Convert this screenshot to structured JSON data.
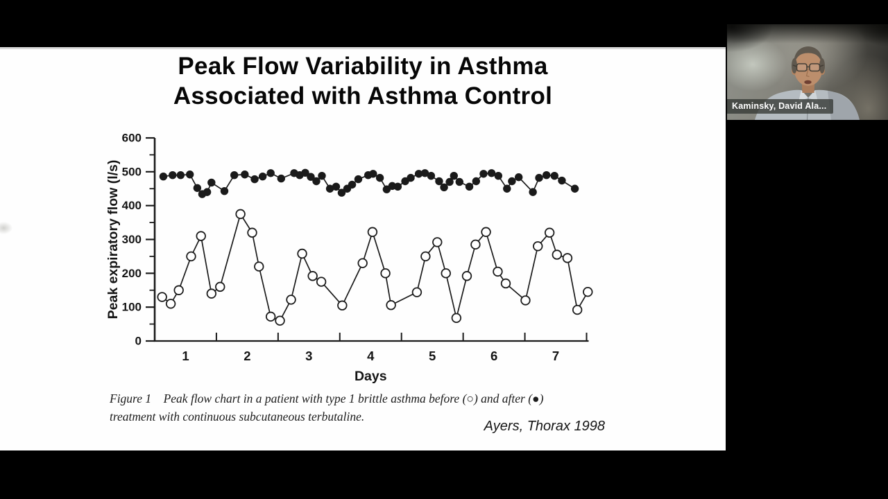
{
  "screen": {
    "background": "#000000"
  },
  "slide": {
    "background": "#fefefe",
    "title_lines": [
      "Peak Flow Variability in Asthma",
      "Associated with Asthma Control"
    ],
    "caption_lines": [
      "Figure 1    Peak flow chart in a patient with type 1 brittle asthma before (○) and after (●)",
      "treatment with continuous subcutaneous terbutaline."
    ],
    "citation": "Ayers, Thorax 1998"
  },
  "chart_data": {
    "type": "line",
    "title": "",
    "xlabel": "Days",
    "ylabel": "Peak expiratory flow (l/s)",
    "xlim": [
      0.5,
      7.5
    ],
    "ylim": [
      0,
      600
    ],
    "x_tick_labels": [
      1,
      2,
      3,
      4,
      5,
      6,
      7
    ],
    "x_tick_marks": [
      1.5,
      2.5,
      3.5,
      4.5,
      5.5,
      6.5,
      7.5
    ],
    "y_tick_labels": [
      0,
      100,
      200,
      300,
      400,
      500,
      600
    ],
    "y_minor_tick_step": 50,
    "grid": false,
    "legend_position": "none (markers explained in figure caption)",
    "line_color": "#1a1a1a",
    "series": [
      {
        "name": "before treatment",
        "marker": "open-circle",
        "x": [
          0.62,
          0.76,
          0.89,
          1.09,
          1.25,
          1.42,
          1.56,
          1.89,
          2.08,
          2.19,
          2.38,
          2.53,
          2.71,
          2.89,
          3.06,
          3.2,
          3.54,
          3.87,
          4.03,
          4.24,
          4.33,
          4.75,
          4.89,
          5.08,
          5.22,
          5.39,
          5.56,
          5.7,
          5.87,
          6.06,
          6.19,
          6.51,
          6.71,
          6.9,
          7.02,
          7.19,
          7.35,
          7.52
        ],
        "y": [
          130,
          110,
          150,
          250,
          310,
          140,
          160,
          375,
          320,
          220,
          72,
          60,
          122,
          258,
          192,
          175,
          105,
          230,
          322,
          200,
          106,
          144,
          250,
          292,
          200,
          68,
          192,
          285,
          322,
          205,
          170,
          120,
          280,
          320,
          255,
          245,
          92,
          145
        ]
      },
      {
        "name": "after treatment",
        "marker": "filled-circle",
        "x": [
          0.64,
          0.79,
          0.92,
          1.07,
          1.19,
          1.27,
          1.35,
          1.42,
          1.63,
          1.79,
          1.96,
          2.12,
          2.25,
          2.38,
          2.55,
          2.76,
          2.85,
          2.94,
          3.03,
          3.12,
          3.21,
          3.34,
          3.44,
          3.53,
          3.62,
          3.7,
          3.8,
          3.96,
          4.04,
          4.15,
          4.26,
          4.35,
          4.44,
          4.56,
          4.65,
          4.78,
          4.88,
          4.98,
          5.11,
          5.19,
          5.28,
          5.35,
          5.44,
          5.6,
          5.71,
          5.83,
          5.96,
          6.07,
          6.21,
          6.29,
          6.4,
          6.63,
          6.73,
          6.85,
          6.98,
          7.1,
          7.31
        ],
        "y": [
          486,
          490,
          490,
          492,
          452,
          434,
          440,
          468,
          443,
          490,
          492,
          478,
          486,
          496,
          480,
          496,
          490,
          497,
          485,
          472,
          488,
          450,
          456,
          438,
          450,
          462,
          478,
          490,
          494,
          482,
          448,
          458,
          456,
          472,
          482,
          494,
          496,
          488,
          472,
          454,
          470,
          488,
          470,
          456,
          472,
          494,
          496,
          488,
          450,
          472,
          484,
          440,
          482,
          490,
          488,
          474,
          450
        ]
      }
    ]
  },
  "webcam": {
    "name_label": "Kaminsky, David Ala...",
    "shirt_color": "#b5bcc1",
    "skin_color": "#bc8e6c",
    "hair_color": "#5f584e"
  }
}
